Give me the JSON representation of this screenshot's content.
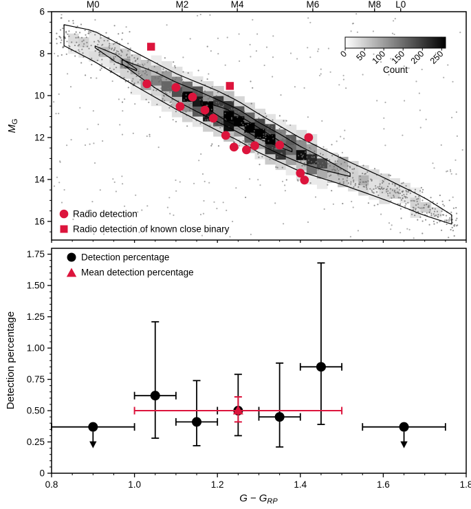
{
  "chart_data": [
    {
      "type": "heatmap",
      "xlim": [
        0.8,
        1.8
      ],
      "ylim": [
        6,
        16.89
      ],
      "ylabel": {
        "main": "M",
        "sub": "G"
      },
      "yticks": [
        6,
        8,
        10,
        12,
        14,
        16
      ],
      "top_axis_ticks": [
        {
          "label": "M0",
          "x": 0.9
        },
        {
          "label": "M2",
          "x": 1.115
        },
        {
          "label": "M4",
          "x": 1.248
        },
        {
          "label": "M6",
          "x": 1.43
        },
        {
          "label": "M8",
          "x": 1.579
        },
        {
          "label": "L0",
          "x": 1.642
        }
      ],
      "colorbar": {
        "label": "Count",
        "tick_labels": [
          "0",
          "50",
          "100",
          "150",
          "200",
          "250"
        ],
        "tick_values": [
          0,
          50,
          100,
          150,
          200,
          250
        ],
        "vmax": 260,
        "color_low": "#ffffff",
        "color_high": "#000000"
      },
      "main_sequence_ridge": [
        [
          0.82,
          7.05
        ],
        [
          0.9,
          7.62
        ],
        [
          1.0,
          8.72
        ],
        [
          1.1,
          9.8
        ],
        [
          1.2,
          10.72
        ],
        [
          1.25,
          11.2
        ],
        [
          1.3,
          11.8
        ],
        [
          1.4,
          12.82
        ],
        [
          1.5,
          13.62
        ],
        [
          1.6,
          14.42
        ],
        [
          1.7,
          15.3
        ],
        [
          1.78,
          16.05
        ]
      ],
      "density_contours": [
        {
          "x_range": [
            0.83,
            1.765
          ],
          "half_widths": [
            [
              0.83,
              0.5
            ],
            [
              0.9,
              0.72
            ],
            [
              1.0,
              0.8
            ],
            [
              1.1,
              0.85
            ],
            [
              1.2,
              0.95
            ],
            [
              1.3,
              0.92
            ],
            [
              1.4,
              0.8
            ],
            [
              1.5,
              0.62
            ],
            [
              1.6,
              0.52
            ],
            [
              1.7,
              0.42
            ],
            [
              1.765,
              0.22
            ]
          ]
        },
        {
          "x_range": [
            0.97,
            1.52
          ],
          "half_widths": [
            [
              0.97,
              0.1
            ],
            [
              1.05,
              0.38
            ],
            [
              1.15,
              0.5
            ],
            [
              1.25,
              0.55
            ],
            [
              1.35,
              0.48
            ],
            [
              1.45,
              0.3
            ],
            [
              1.52,
              0.08
            ]
          ]
        },
        {
          "x_range": [
            1.16,
            1.38
          ],
          "half_widths": [
            [
              1.16,
              0.08
            ],
            [
              1.22,
              0.28
            ],
            [
              1.3,
              0.26
            ],
            [
              1.38,
              0.07
            ]
          ]
        },
        {
          "x_range": [
            0.905,
            1.005
          ],
          "half_widths": [
            [
              0.905,
              0.04
            ],
            [
              0.955,
              0.18
            ],
            [
              1.005,
              0.04
            ]
          ]
        }
      ],
      "series": [
        {
          "name": "Radio detection",
          "marker": "circle",
          "color": "#dc143c",
          "points": [
            [
              1.03,
              9.44
            ],
            [
              1.1,
              9.61
            ],
            [
              1.14,
              10.07
            ],
            [
              1.11,
              10.52
            ],
            [
              1.17,
              10.69
            ],
            [
              1.19,
              11.08
            ],
            [
              1.22,
              11.9
            ],
            [
              1.24,
              12.46
            ],
            [
              1.27,
              12.59
            ],
            [
              1.29,
              12.39
            ],
            [
              1.35,
              12.36
            ],
            [
              1.42,
              12.0
            ],
            [
              1.4,
              13.7
            ],
            [
              1.41,
              14.03
            ]
          ]
        },
        {
          "name": "Radio detection of known close binary",
          "marker": "square",
          "color": "#dc143c",
          "points": [
            [
              1.04,
              7.67
            ],
            [
              1.23,
              9.54
            ]
          ]
        }
      ],
      "background": {
        "seed": 11,
        "n_band_points": 880,
        "n_field_points": 260
      }
    },
    {
      "type": "scatter",
      "xlim": [
        0.8,
        1.8
      ],
      "ylim": [
        0,
        1.797
      ],
      "xlabel": {
        "italic1": "G",
        "dash": "−",
        "italic2": "G",
        "sub": "RP"
      },
      "ylabel": "Detection percentage",
      "xticks": [
        0.8,
        1.0,
        1.2,
        1.4,
        1.6,
        1.8
      ],
      "xtick_labels": [
        "0.8",
        "1.0",
        "1.2",
        "1.4",
        "1.6",
        "1.8"
      ],
      "yticks": [
        0,
        0.25,
        0.5,
        0.75,
        1.0,
        1.25,
        1.5,
        1.75
      ],
      "ytick_labels": [
        "0",
        "0.25",
        "0.50",
        "0.75",
        "1.00",
        "1.25",
        "1.50",
        "1.75"
      ],
      "series": [
        {
          "name": "Detection percentage",
          "marker": "circle",
          "color": "#000000",
          "points": [
            {
              "x": 0.9,
              "y": 0.37,
              "xerr": [
                0.8,
                1.0
              ],
              "upper_limit": true
            },
            {
              "x": 1.05,
              "y": 0.62,
              "xerr": [
                1.0,
                1.1
              ],
              "yerr": [
                0.28,
                1.21
              ]
            },
            {
              "x": 1.15,
              "y": 0.41,
              "xerr": [
                1.1,
                1.2
              ],
              "yerr": [
                0.22,
                0.74
              ]
            },
            {
              "x": 1.25,
              "y": 0.5,
              "xerr": [
                1.2,
                1.3
              ],
              "yerr": [
                0.3,
                0.79
              ]
            },
            {
              "x": 1.35,
              "y": 0.45,
              "xerr": [
                1.3,
                1.4
              ],
              "yerr": [
                0.21,
                0.88
              ]
            },
            {
              "x": 1.45,
              "y": 0.85,
              "xerr": [
                1.4,
                1.5
              ],
              "yerr": [
                0.39,
                1.68
              ]
            },
            {
              "x": 1.65,
              "y": 0.37,
              "xerr": [
                1.55,
                1.75
              ],
              "upper_limit": true
            }
          ]
        },
        {
          "name": "Mean detection percentage",
          "marker": "triangle",
          "color": "#dc143c",
          "points": [
            {
              "x": 1.25,
              "y": 0.5,
              "xerr": [
                1.0,
                1.5
              ],
              "yerr": [
                0.41,
                0.61
              ]
            }
          ]
        }
      ]
    }
  ]
}
